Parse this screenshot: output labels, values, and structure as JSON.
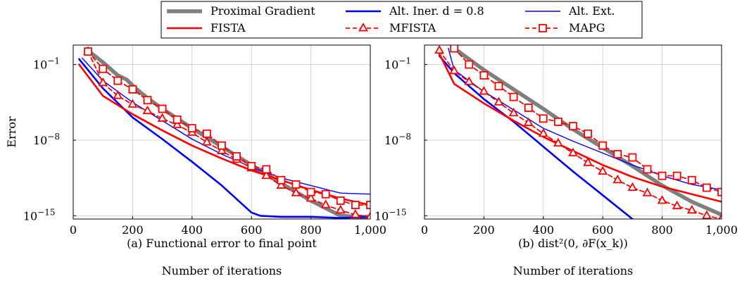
{
  "figure": {
    "ylabel": "Error",
    "legend": {
      "placement": "top-center",
      "columns": 3
    }
  },
  "legend_entries": [
    {
      "label": "Proximal Gradient",
      "color": "#7f7f7f",
      "style": "thick"
    },
    {
      "label": "Alt. Iner. d = 0.8",
      "color": "#0000ff",
      "style": "medium"
    },
    {
      "label": "Alt. Ext.",
      "color": "#0000ff",
      "style": "thin"
    },
    {
      "label": "FISTA",
      "color": "#ff0000",
      "style": "medium"
    },
    {
      "label": "MFISTA",
      "color": "#ff0000",
      "style": "dashed-triangle"
    },
    {
      "label": "MAPG",
      "color": "#ff0000",
      "style": "dashed-square"
    }
  ],
  "chart_data": [
    {
      "type": "line",
      "title": "",
      "caption": "(a) Functional error to final point",
      "xlabel": "Number of iterations",
      "ylabel": "Error",
      "xlim": [
        0,
        1000
      ],
      "ylim_log10": [
        -15.3,
        0.8
      ],
      "y_scale": "log",
      "grid": true,
      "x_ticks": [
        0,
        200,
        400,
        600,
        800,
        1000
      ],
      "x_tick_labels": [
        "0",
        "200",
        "400",
        "600",
        "800",
        "1,000"
      ],
      "y_ticks_log10": [
        -1,
        -8,
        -15
      ],
      "y_tick_labels": [
        "10",
        "10",
        "10"
      ],
      "y_tick_exponents": [
        "−1",
        "−8",
        "−15"
      ],
      "series": [
        {
          "name": "Proximal Gradient",
          "color": "#7f7f7f",
          "style": "thick",
          "x": [
            50,
            100,
            150,
            180,
            210,
            250,
            300,
            400,
            500,
            600,
            700,
            800,
            900,
            960,
            1000
          ],
          "log10_y": [
            0.3,
            -0.8,
            -2.0,
            -2.4,
            -3.2,
            -4.1,
            -5.1,
            -6.9,
            -8.6,
            -10.3,
            -12.0,
            -13.6,
            -15.0,
            -15.1,
            -15.1
          ]
        },
        {
          "name": "Alt. Iner. d = 0.8",
          "color": "#0000ff",
          "style": "medium",
          "x": [
            20,
            100,
            200,
            300,
            400,
            500,
            600,
            630,
            700,
            800,
            900,
            1000
          ],
          "log10_y": [
            -0.5,
            -3.2,
            -5.9,
            -7.9,
            -10.0,
            -12.2,
            -14.7,
            -15.0,
            -15.1,
            -15.1,
            -15.2,
            -15.1
          ]
        },
        {
          "name": "Alt. Ext.",
          "color": "#0000ff",
          "style": "thin",
          "x": [
            30,
            100,
            200,
            300,
            400,
            500,
            600,
            700,
            800,
            900,
            1000
          ],
          "log10_y": [
            -0.4,
            -2.5,
            -4.5,
            -6.2,
            -7.9,
            -9.3,
            -10.5,
            -11.5,
            -12.2,
            -12.9,
            -13.0
          ]
        },
        {
          "name": "FISTA",
          "color": "#ff0000",
          "style": "medium",
          "x": [
            20,
            100,
            200,
            300,
            400,
            500,
            600,
            700,
            800,
            900,
            1000
          ],
          "log10_y": [
            -1.0,
            -3.9,
            -5.6,
            -7.1,
            -8.5,
            -9.7,
            -10.8,
            -11.7,
            -12.6,
            -13.4,
            -14.0
          ]
        },
        {
          "name": "MFISTA",
          "color": "#ff0000",
          "style": "dashed-triangle",
          "x": [
            50,
            100,
            150,
            200,
            250,
            300,
            350,
            400,
            450,
            500,
            550,
            600,
            650,
            700,
            750,
            800,
            850,
            900,
            950,
            1000
          ],
          "log10_y": [
            0.2,
            -2.7,
            -3.9,
            -4.7,
            -5.3,
            -6.0,
            -6.6,
            -7.3,
            -8.2,
            -9.0,
            -9.8,
            -10.6,
            -11.3,
            -12.2,
            -12.9,
            -13.4,
            -14.0,
            -14.5,
            -14.9,
            -15.1
          ]
        },
        {
          "name": "MAPG",
          "color": "#ff0000",
          "style": "dashed-square",
          "x": [
            50,
            100,
            150,
            200,
            250,
            300,
            350,
            400,
            450,
            500,
            550,
            600,
            650,
            700,
            750,
            800,
            850,
            900,
            950,
            1000
          ],
          "log10_y": [
            0.2,
            -1.4,
            -2.5,
            -3.3,
            -4.3,
            -5.1,
            -6.1,
            -6.9,
            -7.4,
            -8.5,
            -9.5,
            -10.4,
            -10.7,
            -11.7,
            -12.1,
            -12.8,
            -13.0,
            -13.6,
            -14.0,
            -14.0
          ]
        }
      ]
    },
    {
      "type": "line",
      "title": "",
      "caption": "(b) dist²(0, ∂F(x_k))",
      "xlabel": "Number of iterations",
      "ylabel": "",
      "xlim": [
        0,
        1000
      ],
      "ylim_log10": [
        -15.3,
        0.8
      ],
      "y_scale": "log",
      "grid": true,
      "x_ticks": [
        0,
        200,
        400,
        600,
        800,
        1000
      ],
      "x_tick_labels": [
        "0",
        "200",
        "400",
        "600",
        "800",
        "1,000"
      ],
      "y_ticks_log10": [
        -1,
        -8,
        -15
      ],
      "y_tick_labels": [
        "10",
        "10",
        "10"
      ],
      "y_tick_exponents": [
        "−1",
        "−8",
        "−15"
      ],
      "series": [
        {
          "name": "Proximal Gradient",
          "color": "#7f7f7f",
          "style": "thick",
          "x": [
            100,
            200,
            300,
            400,
            500,
            600,
            700,
            800,
            900,
            1000
          ],
          "log10_y": [
            0.5,
            -1.5,
            -3.3,
            -5.1,
            -7.0,
            -8.7,
            -10.4,
            -12.2,
            -13.7,
            -14.9
          ]
        },
        {
          "name": "Alt. Iner. d = 0.8",
          "color": "#0000ff",
          "style": "medium",
          "x": [
            50,
            100,
            200,
            300,
            400,
            500,
            600,
            700
          ],
          "log10_y": [
            -0.2,
            -1.8,
            -4.2,
            -6.3,
            -8.6,
            -10.9,
            -13.1,
            -15.3
          ]
        },
        {
          "name": "Alt. Ext.",
          "color": "#0000ff",
          "style": "thin",
          "x": [
            80,
            100,
            200,
            300,
            400,
            500,
            600,
            700,
            800,
            900,
            1000
          ],
          "log10_y": [
            0.5,
            -1.5,
            -3.5,
            -5.2,
            -6.9,
            -8.1,
            -9.2,
            -10.3,
            -11.3,
            -12.1,
            -12.6
          ]
        },
        {
          "name": "FISTA",
          "color": "#ff0000",
          "style": "medium",
          "x": [
            50,
            100,
            200,
            300,
            400,
            500,
            600,
            700,
            800,
            900,
            1000
          ],
          "log10_y": [
            0.0,
            -2.8,
            -4.6,
            -6.2,
            -7.7,
            -9.0,
            -10.3,
            -11.4,
            -12.3,
            -13.0,
            -13.7
          ]
        },
        {
          "name": "MFISTA",
          "color": "#ff0000",
          "style": "dashed-triangle",
          "x": [
            50,
            100,
            150,
            200,
            250,
            300,
            350,
            400,
            450,
            500,
            550,
            600,
            650,
            700,
            750,
            800,
            850,
            900,
            950,
            1000
          ],
          "log10_y": [
            0.3,
            -1.6,
            -2.6,
            -3.5,
            -4.5,
            -5.5,
            -6.4,
            -7.4,
            -8.3,
            -9.2,
            -10.1,
            -10.9,
            -11.7,
            -12.4,
            -12.9,
            -13.6,
            -14.1,
            -14.5,
            -15.0,
            -15.3
          ]
        },
        {
          "name": "MAPG",
          "color": "#ff0000",
          "style": "dashed-square",
          "x": [
            100,
            150,
            200,
            250,
            300,
            350,
            400,
            450,
            500,
            550,
            600,
            650,
            700,
            750,
            800,
            850,
            900,
            950,
            1000
          ],
          "log10_y": [
            0.5,
            -1.0,
            -2.0,
            -3.0,
            -4.0,
            -5.0,
            -6.0,
            -6.3,
            -6.7,
            -7.4,
            -8.5,
            -9.3,
            -9.6,
            -10.7,
            -11.3,
            -11.3,
            -11.7,
            -12.4,
            -12.8
          ]
        }
      ]
    }
  ]
}
